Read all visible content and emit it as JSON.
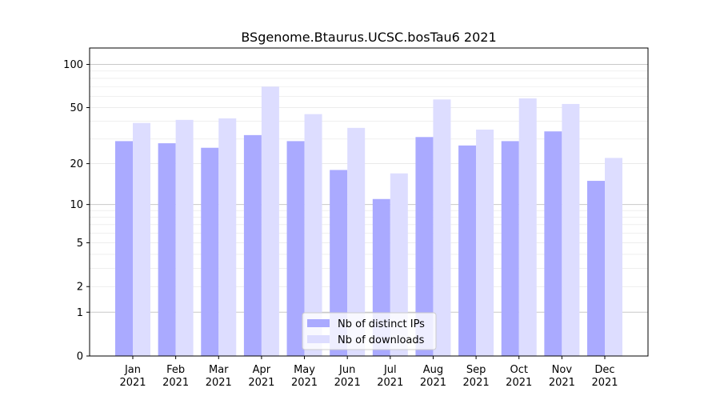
{
  "chart_data": {
    "type": "bar",
    "title": "BSgenome.Btaurus.UCSC.bosTau6 2021",
    "xlabel": "",
    "ylabel": "",
    "y_scale": "log1p",
    "ylim": [
      0,
      130
    ],
    "y_ticks": [
      0,
      1,
      2,
      5,
      10,
      20,
      50,
      100
    ],
    "y_tick_labels": [
      "0",
      "1",
      "2",
      "5",
      "10",
      "20",
      "50",
      "100"
    ],
    "categories": [
      "Jan\n2021",
      "Feb\n2021",
      "Mar\n2021",
      "Apr\n2021",
      "May\n2021",
      "Jun\n2021",
      "Jul\n2021",
      "Aug\n2021",
      "Sep\n2021",
      "Oct\n2021",
      "Nov\n2021",
      "Dec\n2021"
    ],
    "category_lines": [
      [
        "Jan",
        "2021"
      ],
      [
        "Feb",
        "2021"
      ],
      [
        "Mar",
        "2021"
      ],
      [
        "Apr",
        "2021"
      ],
      [
        "May",
        "2021"
      ],
      [
        "Jun",
        "2021"
      ],
      [
        "Jul",
        "2021"
      ],
      [
        "Aug",
        "2021"
      ],
      [
        "Sep",
        "2021"
      ],
      [
        "Oct",
        "2021"
      ],
      [
        "Nov",
        "2021"
      ],
      [
        "Dec",
        "2021"
      ]
    ],
    "series": [
      {
        "name": "Nb of distinct IPs",
        "color": "#aaaaff",
        "values": [
          29,
          28,
          26,
          32,
          29,
          18,
          11,
          31,
          27,
          29,
          34,
          15
        ]
      },
      {
        "name": "Nb of downloads",
        "color": "#ddddff",
        "values": [
          39,
          41,
          42,
          70,
          45,
          36,
          17,
          57,
          35,
          58,
          53,
          22
        ]
      }
    ],
    "grid": true,
    "legend_position": "lower center"
  }
}
